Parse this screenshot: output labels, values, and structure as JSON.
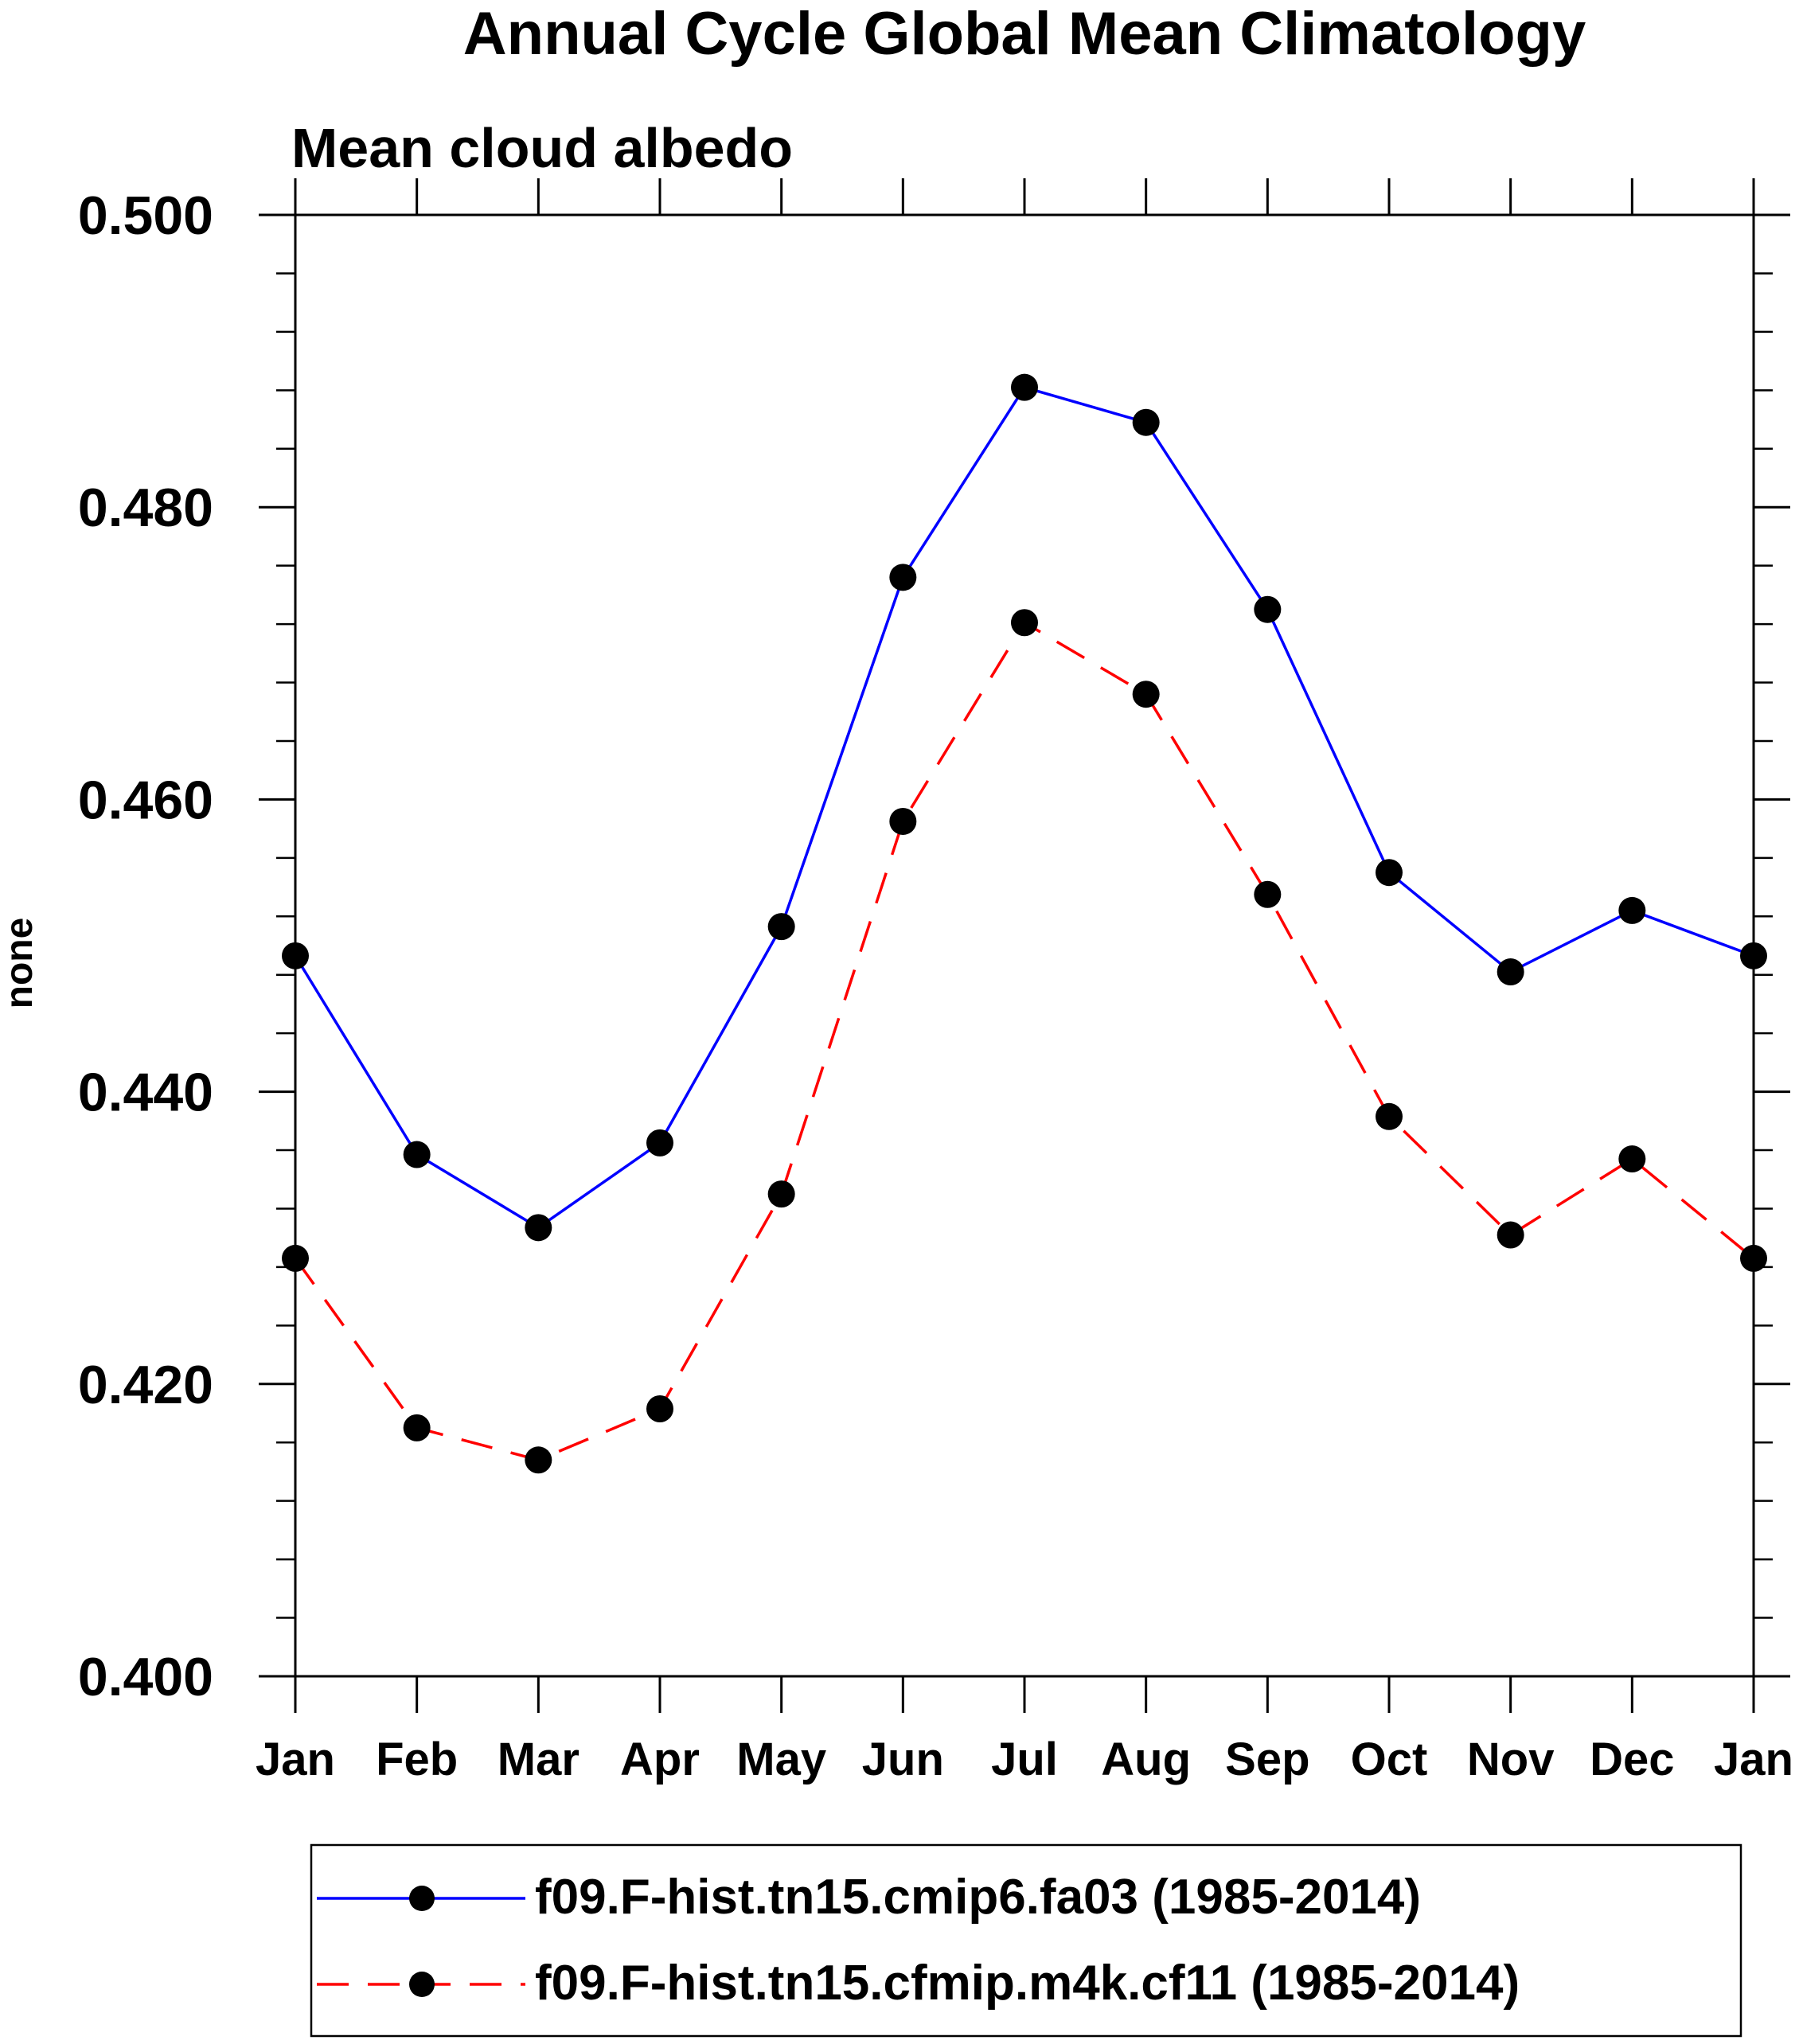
{
  "chart_data": {
    "type": "line",
    "title": "Annual Cycle Global Mean Climatology",
    "subtitle": "Mean cloud albedo",
    "xlabel": "",
    "ylabel": "none",
    "categories": [
      "Jan",
      "Feb",
      "Mar",
      "Apr",
      "May",
      "Jun",
      "Jul",
      "Aug",
      "Sep",
      "Oct",
      "Nov",
      "Dec",
      "Jan"
    ],
    "ylim": [
      0.4,
      0.5
    ],
    "yticks": [
      "0.400",
      "0.420",
      "0.440",
      "0.460",
      "0.480",
      "0.500"
    ],
    "grid": false,
    "legend_position": "bottom",
    "series": [
      {
        "name": "f09.F-hist.tn15.cmip6.fa03 (1985-2014)",
        "color": "#0000ff",
        "dash": "solid",
        "marker": "filled-circle",
        "values": [
          0.4493,
          0.4357,
          0.4307,
          0.4365,
          0.4513,
          0.4752,
          0.4882,
          0.4858,
          0.473,
          0.455,
          0.4482,
          0.4524,
          0.4493
        ]
      },
      {
        "name": "f09.F-hist.tn15.cfmip.m4k.cf11 (1985-2014)",
        "color": "#ff0000",
        "dash": "dashed",
        "marker": "filled-circle",
        "values": [
          0.4286,
          0.417,
          0.4148,
          0.4183,
          0.433,
          0.4585,
          0.4721,
          0.4672,
          0.4535,
          0.4383,
          0.4302,
          0.4354,
          0.4286
        ]
      }
    ]
  }
}
